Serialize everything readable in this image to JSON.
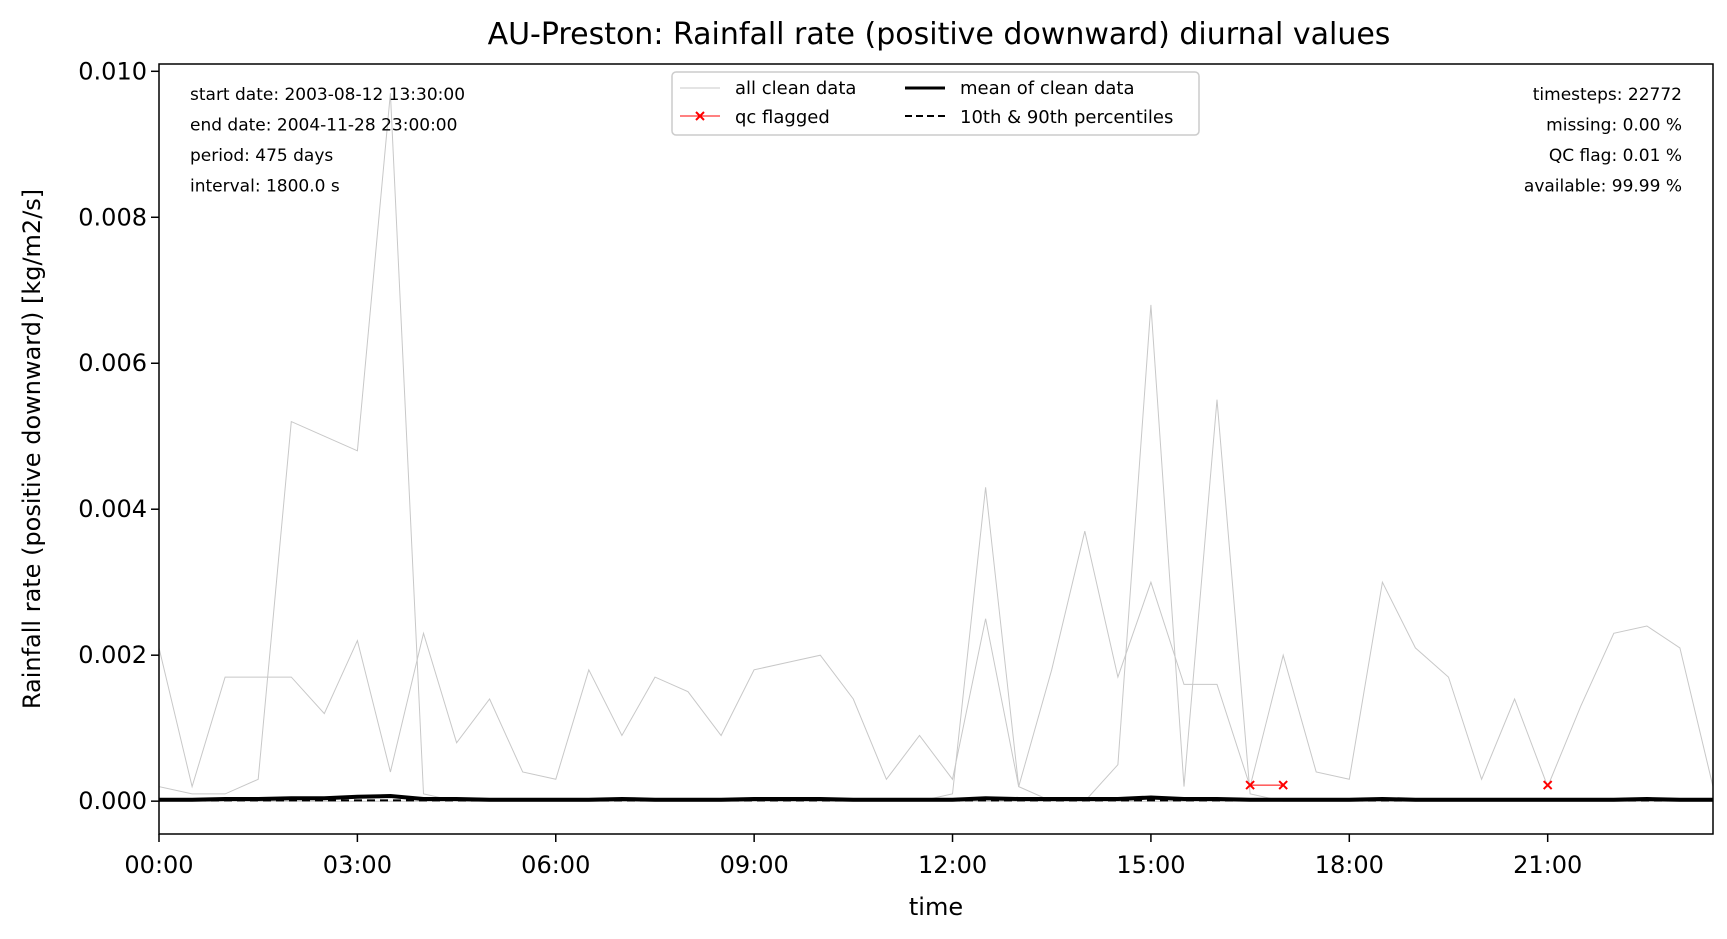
{
  "chart_data": {
    "type": "line",
    "title": "AU-Preston: Rainfall rate (positive downward) diurnal values",
    "xlabel": "time",
    "ylabel": "Rainfall rate (positive downward) [kg/m2/s]",
    "xlim": [
      "00:00",
      "23:30"
    ],
    "ylim": [
      -0.00045,
      0.0101
    ],
    "x_ticks": [
      "00:00",
      "03:00",
      "06:00",
      "09:00",
      "12:00",
      "15:00",
      "18:00",
      "21:00"
    ],
    "y_ticks": [
      "0.000",
      "0.002",
      "0.004",
      "0.006",
      "0.008",
      "0.010"
    ],
    "grid": false,
    "legend": {
      "placement": "top-center",
      "entries": [
        "all clean data",
        "qc flagged",
        "mean of clean data",
        "10th & 90th percentiles"
      ]
    },
    "info_left": [
      "start date: 2003-08-12 13:30:00",
      "end date: 2004-11-28 23:00:00",
      "period: 475 days",
      "interval: 1800.0 s"
    ],
    "info_right": [
      "timesteps: 22772",
      "missing: 0.00 %",
      "QC flag: 0.01 %",
      "available: 99.99 %"
    ],
    "colors": {
      "clean": "#c8c8c8",
      "qc_flagged": "#ff0000",
      "mean": "#000000",
      "percentiles": "#000000"
    },
    "series": [
      {
        "name": "all clean data (example day 1)",
        "x": [
          "00:00",
          "00:30",
          "01:00",
          "01:30",
          "02:00",
          "02:30",
          "03:00",
          "03:30",
          "04:00",
          "04:30",
          "05:00",
          "05:30",
          "06:00",
          "06:30",
          "07:00",
          "07:30",
          "08:00",
          "08:30",
          "09:00",
          "09:30",
          "10:00",
          "10:30",
          "11:00",
          "11:30",
          "12:00",
          "12:30",
          "13:00",
          "13:30",
          "14:00",
          "14:30",
          "15:00",
          "15:30",
          "16:00",
          "16:30",
          "17:00",
          "17:30",
          "18:00",
          "18:30",
          "19:00",
          "19:30",
          "20:00",
          "20:30",
          "21:00",
          "21:30",
          "22:00",
          "22:30",
          "23:00",
          "23:30"
        ],
        "y": [
          0.0002,
          0.0001,
          0.0001,
          0.0003,
          0.0052,
          0.005,
          0.0048,
          0.0097,
          0.0001,
          0,
          0,
          0,
          0,
          0,
          0,
          0,
          0,
          0,
          0,
          0,
          0,
          0,
          0,
          0,
          0,
          0,
          0,
          0,
          0,
          0,
          0,
          0,
          0,
          0,
          0,
          0,
          0,
          0,
          0,
          0,
          0,
          0,
          0,
          0,
          0,
          0,
          0,
          0
        ]
      },
      {
        "name": "all clean data (example day 2)",
        "x": [
          "00:00",
          "00:30",
          "01:00",
          "01:30",
          "02:00",
          "02:30",
          "03:00",
          "03:30",
          "04:00",
          "04:30",
          "05:00",
          "05:30",
          "06:00",
          "06:30",
          "07:00",
          "07:30",
          "08:00",
          "08:30",
          "09:00",
          "09:30",
          "10:00",
          "10:30",
          "11:00",
          "11:30",
          "12:00",
          "12:30",
          "13:00",
          "13:30",
          "14:00",
          "14:30",
          "15:00",
          "15:30",
          "16:00",
          "16:30",
          "17:00",
          "17:30",
          "18:00",
          "18:30",
          "19:00",
          "19:30",
          "20:00",
          "20:30",
          "21:00",
          "21:30",
          "22:00",
          "22:30",
          "23:00",
          "23:30"
        ],
        "y": [
          0,
          0,
          0,
          0,
          0,
          0,
          0,
          0,
          0,
          0,
          0,
          0,
          0,
          0,
          0,
          0,
          0,
          0,
          0,
          0,
          0,
          0,
          0,
          0,
          0.0001,
          0.0043,
          0.0002,
          0,
          0,
          0.0005,
          0.0068,
          0.0002,
          0.0055,
          0.0001,
          0,
          0,
          0,
          0,
          0,
          0,
          0,
          0,
          0,
          0,
          0,
          0,
          0,
          0
        ]
      },
      {
        "name": "all clean data (example day 3)",
        "x": [
          "00:00",
          "00:30",
          "01:00",
          "01:30",
          "02:00",
          "02:30",
          "03:00",
          "03:30",
          "04:00",
          "04:30",
          "05:00",
          "05:30",
          "06:00",
          "06:30",
          "07:00",
          "07:30",
          "08:00",
          "08:30",
          "09:00",
          "09:30",
          "10:00",
          "10:30",
          "11:00",
          "11:30",
          "12:00",
          "12:30",
          "13:00",
          "13:30",
          "14:00",
          "14:30",
          "15:00",
          "15:30",
          "16:00",
          "16:30",
          "17:00",
          "17:30",
          "18:00",
          "18:30",
          "19:00",
          "19:30",
          "20:00",
          "20:30",
          "21:00",
          "21:30",
          "22:00",
          "22:30",
          "23:00",
          "23:30"
        ],
        "y": [
          0.0021,
          0.0002,
          0.0017,
          0.0017,
          0.0017,
          0.0012,
          0.0022,
          0.0004,
          0.0023,
          0.0008,
          0.0014,
          0.0004,
          0.0003,
          0.0018,
          0.0009,
          0.0017,
          0.0015,
          0.0009,
          0.0018,
          0.0019,
          0.002,
          0.0014,
          0.0003,
          0.0009,
          0.0003,
          0.0025,
          0.0002,
          0.0018,
          0.0037,
          0.0017,
          0.003,
          0.0016,
          0.0016,
          0.0002,
          0.002,
          0.0004,
          0.0003,
          0.003,
          0.0021,
          0.0017,
          0.0003,
          0.0014,
          0.0002,
          0.0013,
          0.0023,
          0.0024,
          0.0021,
          0.0002
        ]
      },
      {
        "name": "mean of clean data",
        "x": [
          "00:00",
          "00:30",
          "01:00",
          "01:30",
          "02:00",
          "02:30",
          "03:00",
          "03:30",
          "04:00",
          "04:30",
          "05:00",
          "05:30",
          "06:00",
          "06:30",
          "07:00",
          "07:30",
          "08:00",
          "08:30",
          "09:00",
          "09:30",
          "10:00",
          "10:30",
          "11:00",
          "11:30",
          "12:00",
          "12:30",
          "13:00",
          "13:30",
          "14:00",
          "14:30",
          "15:00",
          "15:30",
          "16:00",
          "16:30",
          "17:00",
          "17:30",
          "18:00",
          "18:30",
          "19:00",
          "19:30",
          "20:00",
          "20:30",
          "21:00",
          "21:30",
          "22:00",
          "22:30",
          "23:00",
          "23:30"
        ],
        "y": [
          2e-05,
          2e-05,
          3e-05,
          3e-05,
          4e-05,
          4e-05,
          6e-05,
          7e-05,
          3e-05,
          3e-05,
          2e-05,
          2e-05,
          2e-05,
          2e-05,
          3e-05,
          2e-05,
          2e-05,
          2e-05,
          3e-05,
          3e-05,
          3e-05,
          2e-05,
          2e-05,
          2e-05,
          2e-05,
          4e-05,
          3e-05,
          3e-05,
          3e-05,
          3e-05,
          5e-05,
          3e-05,
          3e-05,
          2e-05,
          2e-05,
          2e-05,
          2e-05,
          3e-05,
          2e-05,
          2e-05,
          2e-05,
          2e-05,
          2e-05,
          2e-05,
          2e-05,
          3e-05,
          2e-05,
          2e-05
        ]
      }
    ],
    "qc_flagged_points": [
      {
        "x": "16:30",
        "y": 0.00022
      },
      {
        "x": "17:00",
        "y": 0.00022
      },
      {
        "x": "21:00",
        "y": 0.00022
      }
    ]
  }
}
